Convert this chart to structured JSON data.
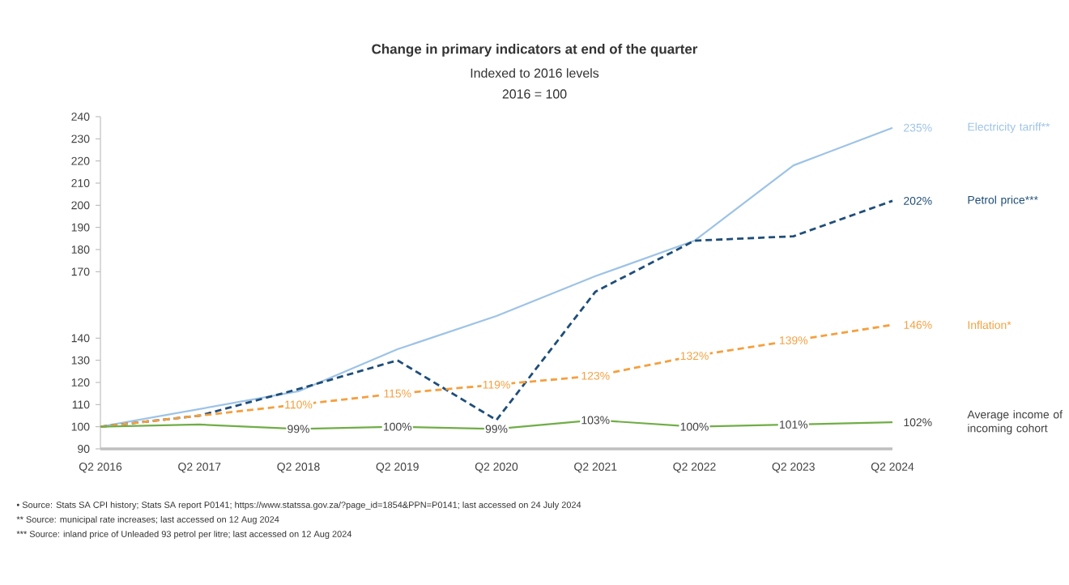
{
  "chart_data": {
    "type": "line",
    "title": "Change in primary indicators at end of the quarter",
    "subtitle": "Indexed to 2016 levels",
    "categories": [
      "Q2 2016",
      "Q2 2017",
      "Q2 2018",
      "Q2 2019",
      "Q2 2020",
      "Q2 2021",
      "Q2 2022",
      "Q2 2023",
      "Q2 2024"
    ],
    "series": [
      {
        "name": "Electricity tariff**",
        "color": "#9dc3e6",
        "line_style": "solid",
        "values": [
          100,
          108,
          116,
          135,
          150,
          168,
          184,
          218,
          235
        ],
        "value_labels": [
          null,
          null,
          null,
          null,
          null,
          null,
          null,
          null,
          "235%"
        ]
      },
      {
        "name": "Petrol price***",
        "color": "#1f4e79",
        "line_style": "dashed",
        "values": [
          100,
          105,
          117,
          130,
          103,
          161,
          184,
          186,
          202
        ],
        "value_labels": [
          null,
          null,
          null,
          null,
          null,
          null,
          null,
          null,
          "202%"
        ]
      },
      {
        "name": "Inflation*",
        "color": "#f4a040",
        "line_style": "dashed",
        "values": [
          100,
          105,
          110,
          115,
          119,
          123,
          132,
          139,
          146
        ],
        "value_labels": [
          null,
          null,
          "110%",
          "115%",
          "119%",
          "123%",
          "132%",
          "139%",
          "146%"
        ]
      },
      {
        "name": "Average income of incoming cohort",
        "color": "#70ad47",
        "line_style": "solid",
        "values": [
          100,
          101,
          99,
          100,
          99,
          103,
          100,
          101,
          102
        ],
        "value_labels": [
          null,
          null,
          "99%",
          "100%",
          "99%",
          "103%",
          "100%",
          "101%",
          "102%"
        ]
      }
    ],
    "ylim": [
      90,
      240
    ],
    "yticks": [
      90,
      100,
      110,
      120,
      130,
      140,
      170,
      180,
      190,
      200,
      210,
      220,
      230,
      240
    ],
    "grid": false,
    "annotations": [
      "2016 = 100",
      "•    Source: Stats SA CPI history;  Stats SA report P0141; https://www.statssa.gov.za/?page_id=1854&PPN=P0141; last accessed on 24 July 2024",
      "**  Source: municipal rate increases; last accessed on 12 Aug 2024",
      "*** Source: inland price of Unleaded 93 petrol per litre; last accessed on 12 Aug 2024"
    ]
  }
}
